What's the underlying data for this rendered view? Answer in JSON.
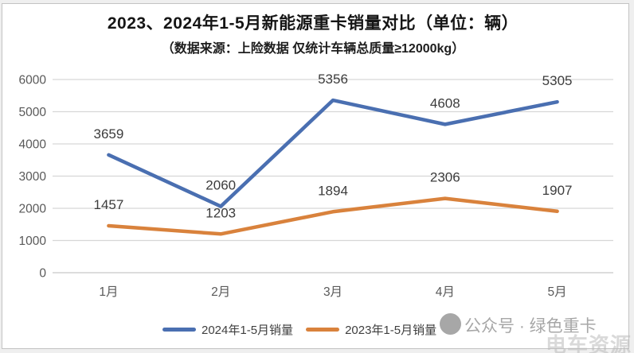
{
  "title": "2023、2024年1-5月新能源重卡销量对比（单位：辆）",
  "subtitle": "（数据来源：上险数据 仅统计车辆总质量≥12000kg）",
  "watermark": {
    "badge_text": "公众号 · 绿色重卡",
    "corner_text": "电车资源"
  },
  "colors": {
    "series_2024": "#4A6FB1",
    "series_2023": "#D9823C",
    "grid": "#D6D6D6",
    "baseline": "#C6C6C6",
    "axis_text": "#595959",
    "data_label_text": "#3C3C3C"
  },
  "chart_data": {
    "type": "line",
    "categories": [
      "1月",
      "2月",
      "3月",
      "4月",
      "5月"
    ],
    "series": [
      {
        "name": "2024年1-5月销量",
        "color": "#4A6FB1",
        "values": [
          3659,
          2060,
          5356,
          4608,
          5305
        ]
      },
      {
        "name": "2023年1-5月销量",
        "color": "#D9823C",
        "values": [
          1457,
          1203,
          1894,
          2306,
          1907
        ]
      }
    ],
    "title": "2023、2024年1-5月新能源重卡销量对比（单位：辆）",
    "xlabel": "",
    "ylabel": "",
    "ylim": [
      0,
      6000
    ],
    "ytick_step": 1000,
    "grid": "horizontal",
    "legend_position": "bottom",
    "data_labels": true
  }
}
